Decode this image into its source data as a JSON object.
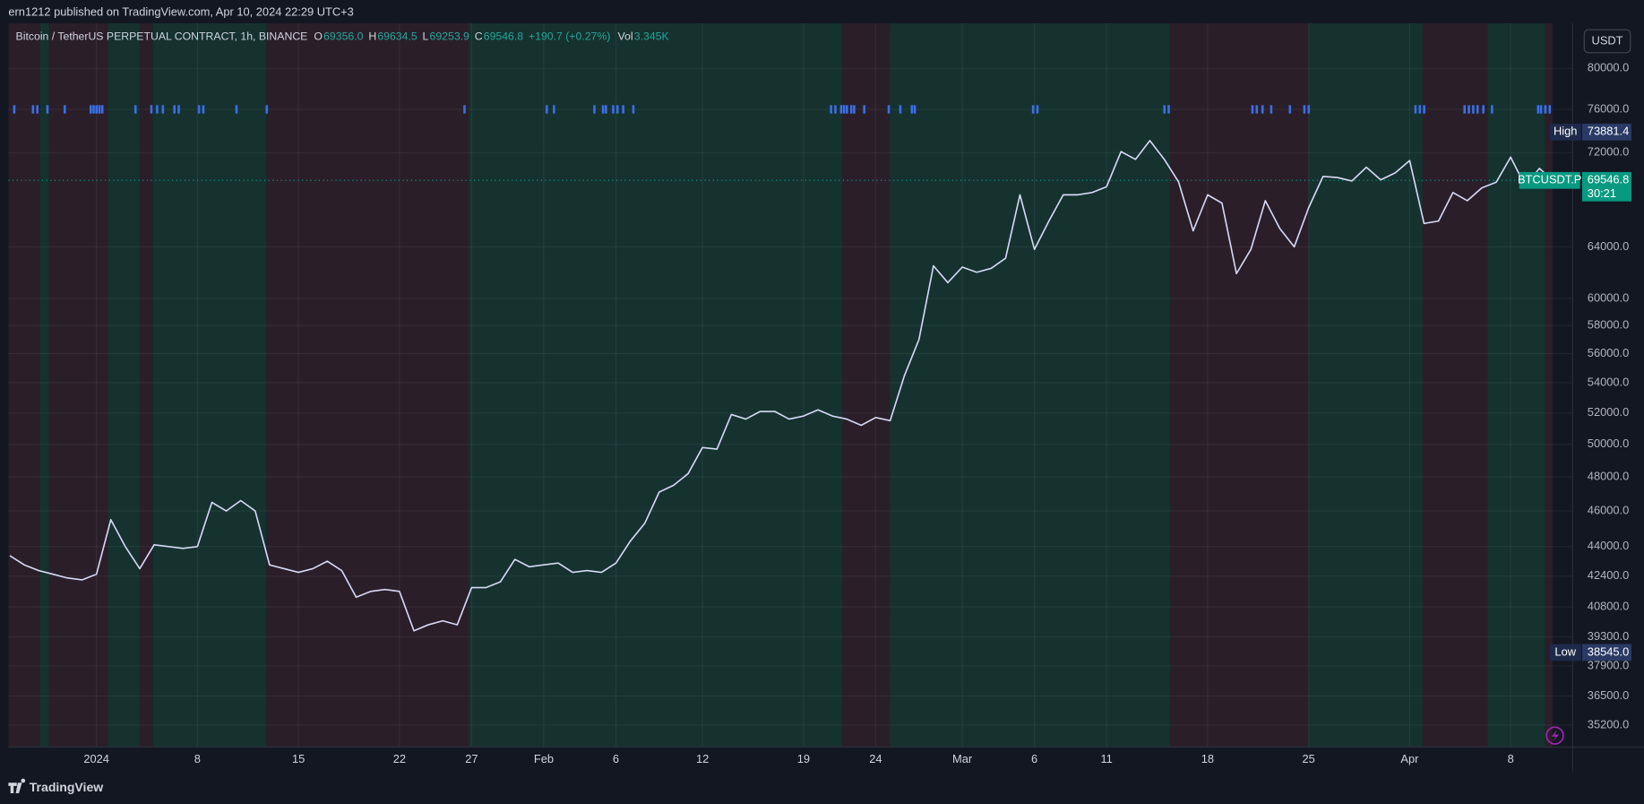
{
  "header": {
    "publisher": "ern1212 published on TradingView.com, Apr 10, 2024 22:29 UTC+3"
  },
  "legend": {
    "symbol": "Bitcoin / TetherUS PERPETUAL CONTRACT, 1h, BINANCE",
    "open_label": "O",
    "open": "69356.0",
    "high_label": "H",
    "high": "69634.5",
    "low_label": "L",
    "low": "69253.9",
    "close_label": "C",
    "close": "69546.8",
    "change": "+190.7 (+0.27%)",
    "volume_label": "Vol",
    "volume": "3.345K"
  },
  "currency_button": "USDT",
  "footer": {
    "brand": "TradingView"
  },
  "chart_data": {
    "type": "line",
    "log_scale": true,
    "grid": true,
    "x": [
      -6,
      -5,
      -4,
      -3,
      -2,
      -1,
      0,
      1,
      2,
      3,
      4,
      5,
      6,
      7,
      8,
      9,
      10,
      11,
      12,
      13,
      14,
      15,
      16,
      17,
      18,
      19,
      20,
      21,
      22,
      23,
      24,
      25,
      26,
      27,
      28,
      29,
      30,
      31,
      32,
      33,
      34,
      35,
      36,
      37,
      38,
      39,
      40,
      41,
      42,
      43,
      44,
      45,
      46,
      47,
      48,
      49,
      50,
      51,
      52,
      53,
      54,
      55,
      56,
      57,
      58,
      59,
      60,
      61,
      62,
      63,
      64,
      65,
      66,
      67,
      68,
      69,
      70,
      71,
      72,
      73,
      74,
      75,
      76,
      77,
      78,
      79,
      80,
      81,
      82,
      83,
      84,
      85,
      86,
      87,
      88,
      89,
      90,
      91,
      92,
      93,
      94,
      95,
      96,
      97,
      98,
      99,
      100,
      100.9
    ],
    "series": [
      {
        "color": "#d6d8f5",
        "values": [
          43500,
          43000,
          42700,
          42500,
          42300,
          42200,
          42500,
          45500,
          44000,
          42800,
          44100,
          44000,
          43900,
          44000,
          46500,
          46000,
          46600,
          46000,
          43000,
          42800,
          42600,
          42800,
          43200,
          42700,
          41300,
          41600,
          41700,
          41600,
          39600,
          39900,
          40100,
          39900,
          41800,
          41800,
          42100,
          43300,
          42900,
          43000,
          43100,
          42600,
          42700,
          42600,
          43100,
          44300,
          45300,
          47100,
          47500,
          48200,
          49800,
          49700,
          51900,
          51600,
          52100,
          52100,
          51600,
          51800,
          52200,
          51800,
          51600,
          51200,
          51700,
          51500,
          54500,
          57000,
          62500,
          61200,
          62400,
          62000,
          62300,
          63100,
          68300,
          63800,
          66100,
          68300,
          68300,
          68500,
          69000,
          72100,
          71400,
          73100,
          71400,
          69400,
          65300,
          68300,
          67600,
          61900,
          63800,
          67800,
          65500,
          64000,
          67200,
          69900,
          69800,
          69500,
          70700,
          69600,
          70200,
          71300,
          65900,
          66100,
          68500,
          67800,
          68900,
          69400,
          71600,
          69100,
          70600,
          69546.8
        ]
      }
    ],
    "xlim": [
      -6.1,
      102.3
    ],
    "xticks": [
      {
        "value": 0,
        "label": "2024"
      },
      {
        "value": 7,
        "label": "8"
      },
      {
        "value": 14,
        "label": "15"
      },
      {
        "value": 21,
        "label": "22"
      },
      {
        "value": 26,
        "label": "27"
      },
      {
        "value": 31,
        "label": "Feb"
      },
      {
        "value": 36,
        "label": "6"
      },
      {
        "value": 42,
        "label": "12"
      },
      {
        "value": 49,
        "label": "19"
      },
      {
        "value": 54,
        "label": "24"
      },
      {
        "value": 60,
        "label": "Mar"
      },
      {
        "value": 65,
        "label": "6"
      },
      {
        "value": 70,
        "label": "11"
      },
      {
        "value": 77,
        "label": "18"
      },
      {
        "value": 84,
        "label": "25"
      },
      {
        "value": 91,
        "label": "Apr"
      },
      {
        "value": 98,
        "label": "8"
      }
    ],
    "ylim": [
      34240,
      84640
    ],
    "yticks": [
      {
        "value": 80000,
        "label": "80000.0"
      },
      {
        "value": 76000,
        "label": "76000.0"
      },
      {
        "value": 72000,
        "label": "72000.0"
      },
      {
        "value": 64000,
        "label": "64000.0"
      },
      {
        "value": 60000,
        "label": "60000.0"
      },
      {
        "value": 58000,
        "label": "58000.0"
      },
      {
        "value": 56000,
        "label": "56000.0"
      },
      {
        "value": 54000,
        "label": "54000.0"
      },
      {
        "value": 52000,
        "label": "52000.0"
      },
      {
        "value": 50000,
        "label": "50000.0"
      },
      {
        "value": 48000,
        "label": "48000.0"
      },
      {
        "value": 46000,
        "label": "46000.0"
      },
      {
        "value": 44000,
        "label": "44000.0"
      },
      {
        "value": 42400,
        "label": "42400.0"
      },
      {
        "value": 40800,
        "label": "40800.0"
      },
      {
        "value": 39300,
        "label": "39300.0"
      },
      {
        "value": 37900,
        "label": "37900.0"
      },
      {
        "value": 36500,
        "label": "36500.0"
      },
      {
        "value": 35200,
        "label": "35200.0"
      }
    ],
    "regions": [
      {
        "x0": -6.1,
        "x1": -3.9,
        "color": "#2a1f29"
      },
      {
        "x0": -3.9,
        "x1": -3.3,
        "color": "#15322f"
      },
      {
        "x0": -3.3,
        "x1": 0.8,
        "color": "#2a1f29"
      },
      {
        "x0": 0.8,
        "x1": 3.0,
        "color": "#15322f"
      },
      {
        "x0": 3.0,
        "x1": 3.9,
        "color": "#2a1f29"
      },
      {
        "x0": 3.9,
        "x1": 11.8,
        "color": "#15322f"
      },
      {
        "x0": 11.8,
        "x1": 25.8,
        "color": "#2a1f29"
      },
      {
        "x0": 25.8,
        "x1": 51.7,
        "color": "#15322f"
      },
      {
        "x0": 51.7,
        "x1": 55.0,
        "color": "#2a1f29"
      },
      {
        "x0": 55.0,
        "x1": 74.4,
        "color": "#15322f"
      },
      {
        "x0": 74.4,
        "x1": 84.0,
        "color": "#2a1f29"
      },
      {
        "x0": 84.0,
        "x1": 91.9,
        "color": "#15322f"
      },
      {
        "x0": 91.9,
        "x1": 96.4,
        "color": "#2a1f29"
      },
      {
        "x0": 96.4,
        "x1": 100.4,
        "color": "#15322f"
      },
      {
        "x0": 100.4,
        "x1": 100.9,
        "color": "#2a1f29"
      }
    ],
    "signals": {
      "color": "#3b6fe8",
      "x": [
        -5.7,
        -4.4,
        -4.1,
        -3.4,
        -2.2,
        -0.4,
        -0.2,
        0,
        0.2,
        0.4,
        2.7,
        3.8,
        4.2,
        4.6,
        5.4,
        5.7,
        7.1,
        7.4,
        9.7,
        11.8,
        25.5,
        31.2,
        31.7,
        34.5,
        35.1,
        35.3,
        35.8,
        36.1,
        36.5,
        37.2,
        50.9,
        51.2,
        51.6,
        51.8,
        52.0,
        52.3,
        52.5,
        53.2,
        54.9,
        55.7,
        56.5,
        56.7,
        64.9,
        65.2,
        74.0,
        74.3,
        80.1,
        80.4,
        80.8,
        81.4,
        82.7,
        83.7,
        84.0,
        91.4,
        91.7,
        92.0,
        94.8,
        95.1,
        95.4,
        95.7,
        96.1,
        96.7,
        99.9,
        100.1,
        100.4,
        100.7
      ]
    },
    "high_label": "High",
    "high": 73881.4,
    "low_label": "Low",
    "low": {
      "value": 38545,
      "label": "38545.0"
    },
    "last_label": "BTCUSDT.P",
    "last": 69546.8,
    "countdown": "30:21"
  }
}
